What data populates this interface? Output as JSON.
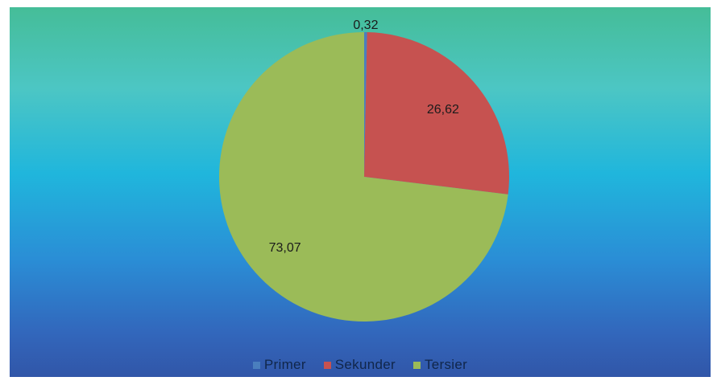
{
  "chart_data": {
    "type": "pie",
    "categories": [
      "Primer",
      "Sekunder",
      "Tersier"
    ],
    "values": [
      0.32,
      26.62,
      73.07
    ],
    "data_labels": [
      "0,32",
      "26,62",
      "73,07"
    ],
    "colors": [
      "#4a7fbe",
      "#c65250",
      "#9bbb58"
    ],
    "legend_position": "bottom"
  },
  "legend": [
    {
      "label": "Primer",
      "color": "#4a7fbe"
    },
    {
      "label": "Sekunder",
      "color": "#c65250"
    },
    {
      "label": "Tersier",
      "color": "#9bbb58"
    }
  ]
}
